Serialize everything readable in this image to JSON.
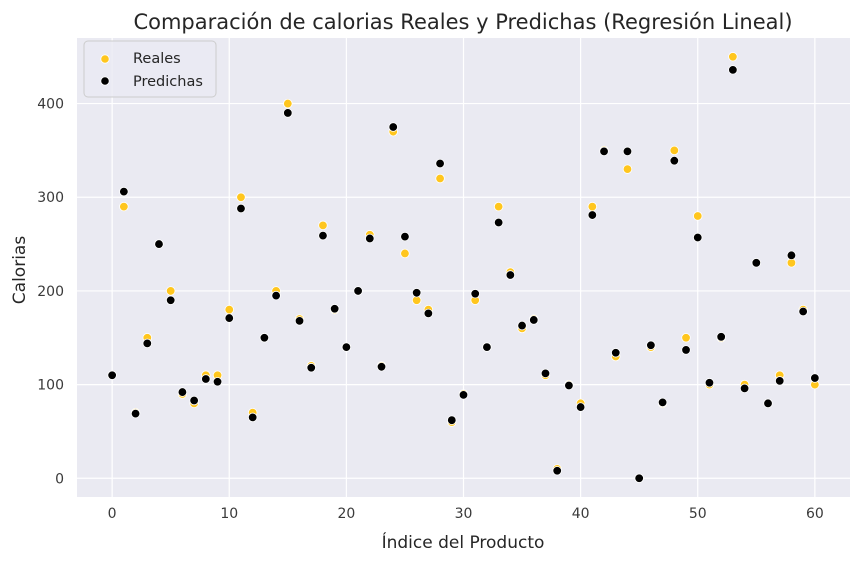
{
  "chart_data": {
    "type": "scatter",
    "title": "Comparación de calorias Reales y Predichas (Regresión Lineal)",
    "xlabel": "Índice del Producto",
    "ylabel": "Calorias",
    "xlim": [
      -3,
      63
    ],
    "ylim": [
      -20,
      470
    ],
    "xticks": [
      0,
      10,
      20,
      30,
      40,
      50,
      60
    ],
    "yticks": [
      0,
      100,
      200,
      300,
      400
    ],
    "grid": true,
    "legend_position": "top-left",
    "series": [
      {
        "name": "Reales",
        "color": "#ffc61e",
        "x": [
          0,
          1,
          2,
          3,
          4,
          5,
          6,
          7,
          8,
          9,
          10,
          11,
          12,
          13,
          14,
          15,
          16,
          17,
          18,
          19,
          20,
          21,
          22,
          23,
          24,
          25,
          26,
          27,
          28,
          29,
          30,
          31,
          32,
          33,
          34,
          35,
          36,
          37,
          38,
          39,
          40,
          41,
          42,
          43,
          44,
          45,
          46,
          47,
          48,
          49,
          50,
          51,
          52,
          53,
          54,
          55,
          56,
          57,
          58,
          59,
          60
        ],
        "y": [
          110,
          290,
          70,
          150,
          250,
          200,
          90,
          80,
          110,
          110,
          180,
          300,
          70,
          150,
          200,
          400,
          170,
          120,
          270,
          180,
          140,
          200,
          260,
          120,
          370,
          240,
          190,
          180,
          320,
          60,
          90,
          190,
          140,
          290,
          220,
          160,
          170,
          110,
          10,
          100,
          80,
          290,
          350,
          130,
          330,
          0,
          140,
          80,
          350,
          150,
          280,
          100,
          150,
          450,
          100,
          230,
          80,
          110,
          230,
          180,
          100
        ]
      },
      {
        "name": "Predichas",
        "color": "#000000",
        "x": [
          0,
          1,
          2,
          3,
          4,
          5,
          6,
          7,
          8,
          9,
          10,
          11,
          12,
          13,
          14,
          15,
          16,
          17,
          18,
          19,
          20,
          21,
          22,
          23,
          24,
          25,
          26,
          27,
          28,
          29,
          30,
          31,
          32,
          33,
          34,
          35,
          36,
          37,
          38,
          39,
          40,
          41,
          42,
          43,
          44,
          45,
          46,
          47,
          48,
          49,
          50,
          51,
          52,
          53,
          54,
          55,
          56,
          57,
          58,
          59,
          60
        ],
        "y": [
          110,
          306,
          69,
          144,
          250,
          190,
          92,
          83,
          106,
          103,
          171,
          288,
          65,
          150,
          195,
          390,
          168,
          118,
          259,
          181,
          140,
          200,
          256,
          119,
          375,
          258,
          198,
          176,
          336,
          62,
          89,
          197,
          140,
          273,
          217,
          163,
          169,
          112,
          8,
          99,
          76,
          281,
          349,
          134,
          349,
          0,
          142,
          81,
          339,
          137,
          257,
          102,
          151,
          436,
          96,
          230,
          80,
          104,
          238,
          178,
          107
        ]
      }
    ]
  }
}
